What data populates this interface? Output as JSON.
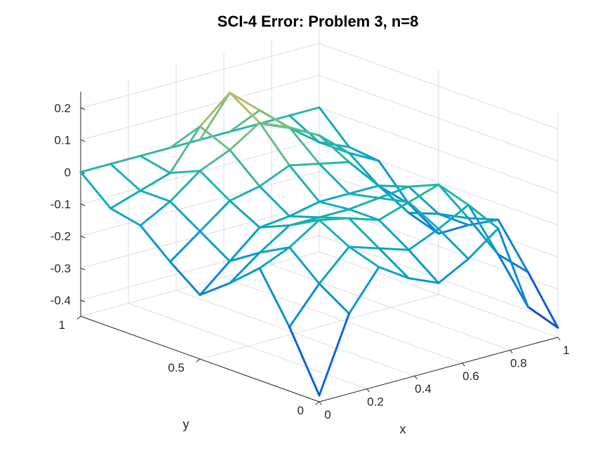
{
  "chart_data": {
    "type": "surface-mesh-3d",
    "title": "SCI-4 Error: Problem 3, n=8",
    "xlabel": "x",
    "ylabel": "y",
    "zlabel": "",
    "xlim": [
      0,
      1
    ],
    "ylim": [
      0,
      1
    ],
    "zlim": [
      -0.45,
      0.25
    ],
    "x_ticks": [
      0,
      0.2,
      0.4,
      0.6,
      0.8,
      1
    ],
    "x_tick_labels": [
      "0",
      "0.2",
      "0.4",
      "0.6",
      "0.8",
      "1"
    ],
    "y_ticks": [
      0,
      0.5,
      1
    ],
    "y_tick_labels": [
      "0",
      "0.5",
      "1"
    ],
    "z_ticks": [
      -0.4,
      -0.3,
      -0.2,
      -0.1,
      0,
      0.1,
      0.2
    ],
    "z_tick_labels": [
      "-0.4",
      "-0.3",
      "-0.2",
      "-0.1",
      "0",
      "0.1",
      "0.2"
    ],
    "grid": true,
    "colormap": "parula",
    "grid_x": [
      0,
      0.125,
      0.25,
      0.375,
      0.5,
      0.625,
      0.75,
      0.875,
      1
    ],
    "grid_y": [
      0,
      0.125,
      0.25,
      0.375,
      0.5,
      0.625,
      0.75,
      0.875,
      1
    ],
    "z": [
      [
        -0.43,
        -0.25,
        -0.1,
        -0.18,
        -0.25,
        -0.18,
        -0.1,
        -0.08,
        0.0
      ],
      [
        -0.2,
        -0.14,
        -0.06,
        -0.11,
        -0.17,
        -0.11,
        -0.05,
        -0.05,
        0.0
      ],
      [
        -0.08,
        -0.05,
        0.0,
        -0.05,
        -0.09,
        -0.04,
        0.02,
        -0.02,
        0.0
      ],
      [
        -0.14,
        -0.08,
        -0.02,
        -0.05,
        -0.08,
        -0.02,
        0.06,
        0.1,
        0.0
      ],
      [
        -0.18,
        -0.11,
        -0.05,
        -0.05,
        -0.06,
        0.02,
        0.12,
        0.18,
        0.0
      ],
      [
        -0.13,
        -0.07,
        -0.02,
        -0.04,
        -0.06,
        0.0,
        0.08,
        0.1,
        0.0
      ],
      [
        -0.06,
        -0.02,
        0.01,
        -0.03,
        -0.06,
        -0.02,
        0.03,
        0.02,
        0.0
      ],
      [
        -0.33,
        -0.2,
        -0.12,
        -0.14,
        -0.17,
        -0.12,
        -0.05,
        -0.05,
        0.0
      ],
      [
        -0.42,
        -0.28,
        -0.15,
        -0.2,
        -0.26,
        -0.2,
        -0.1,
        -0.09,
        0.0
      ]
    ]
  },
  "colors": {
    "axis": "#262626",
    "grid": "#dcdcdc"
  }
}
